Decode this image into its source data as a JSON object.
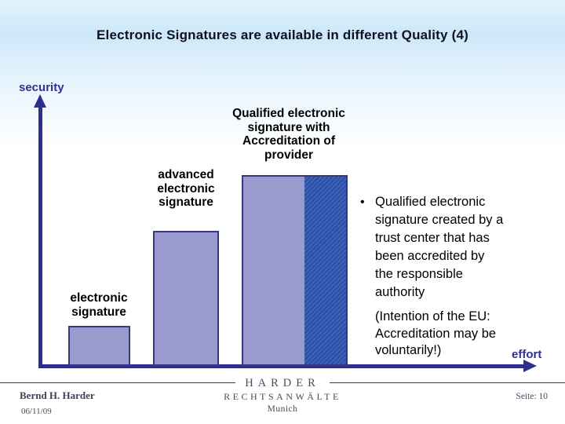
{
  "slide": {
    "title": "Electronic Signatures are available in different Quality (4)"
  },
  "chart": {
    "y_axis_label": "security",
    "x_axis_label": "effort",
    "bars": [
      {
        "label": "electronic\nsignature"
      },
      {
        "label": "advanced\nelectronic\nsignature"
      },
      {
        "label": "Qualified electronic\nsignature with\nAccreditation of\nprovider"
      }
    ]
  },
  "notes": {
    "bullet_marker": "•",
    "bullet": "Qualified electronic\nsignature created by a\ntrust center that has\nbeen accredited by\nthe responsible\nauthority",
    "intention": "(Intention of the EU:\nAccreditation may be\nvoluntarily!)"
  },
  "footer": {
    "author": "Bernd H. Harder",
    "date": "06/11/09",
    "firm_name": "HARDER",
    "firm_subtitle": "RECHTSANWÄLTE",
    "firm_city": "Munich",
    "page": "Seite: 10"
  },
  "colors": {
    "bar_fill": "#9a9ace",
    "bar_border": "#38387e",
    "hatch_background": "#2a50a7",
    "hatch_stripe": "#4568ba",
    "axis": "#2d2f8e",
    "axis_label": "#2e3191",
    "header_gradient_top": "#cde8fa"
  },
  "chart_data": {
    "type": "bar",
    "title": "Electronic Signatures are available in different Quality (4)",
    "xlabel": "effort",
    "ylabel": "security",
    "categories": [
      "electronic signature",
      "advanced electronic signature",
      "Qualified electronic signature with Accreditation of provider"
    ],
    "values": [
      1,
      3.4,
      4.8
    ],
    "value_scale": "relative (conceptual chart, no numeric ticks or gridlines shown)",
    "legend": "none",
    "annotations": [
      "third bar is half plain fill, half dark-blue diagonal hatch",
      "bullet note: Qualified electronic signature created by a trust center that has been accredited by the responsible authority",
      "note: (Intention of the EU: Accreditation may be voluntarily!)"
    ]
  }
}
